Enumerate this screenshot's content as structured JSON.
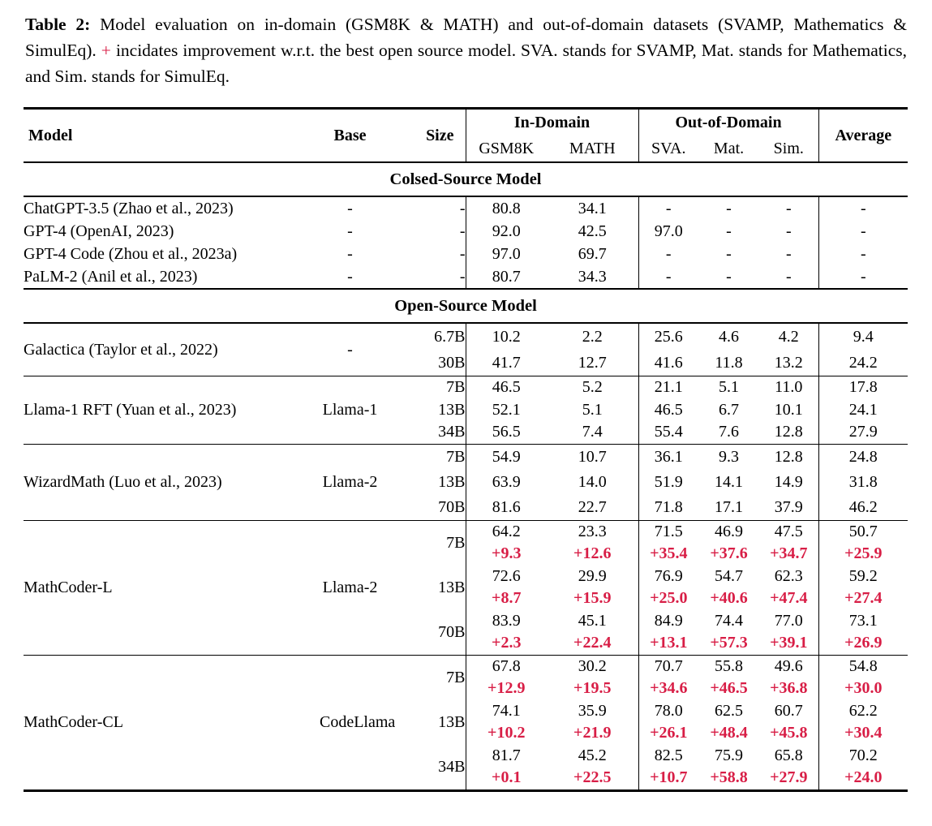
{
  "colors": {
    "accent_red": "#d81e46",
    "text": "#000000",
    "background": "#ffffff"
  },
  "caption": {
    "label": "Table 2:",
    "before_plus": "Model evaluation on in-domain (GSM8K & MATH) and out-of-domain datasets (SVAMP, Mathematics & SimulEq).",
    "plus": "+",
    "after_plus": "incidates improvement w.r.t. the best open source model. SVA. stands for SVAMP, Mat. stands for Mathematics, and Sim. stands for SimulEq."
  },
  "table": {
    "header": {
      "model": "Model",
      "base": "Base",
      "size": "Size",
      "in_domain": "In-Domain",
      "out_of_domain": "Out-of-Domain",
      "average": "Average",
      "sub": [
        "GSM8K",
        "MATH",
        "SVA.",
        "Mat.",
        "Sim."
      ]
    },
    "sections": [
      {
        "title": "Colsed-Source Model",
        "blocks": [
          {
            "models": [
              {
                "model": "ChatGPT-3.5 (Zhao et al., 2023)",
                "base": "-",
                "rows": [
                  {
                    "size": "-",
                    "values": [
                      "80.8",
                      "34.1",
                      "-",
                      "-",
                      "-",
                      "-"
                    ]
                  }
                ]
              },
              {
                "model": "GPT-4 (OpenAI, 2023)",
                "base": "-",
                "rows": [
                  {
                    "size": "-",
                    "values": [
                      "92.0",
                      "42.5",
                      "97.0",
                      "-",
                      "-",
                      "-"
                    ]
                  }
                ]
              },
              {
                "model": "GPT-4 Code (Zhou et al., 2023a)",
                "base": "-",
                "rows": [
                  {
                    "size": "-",
                    "values": [
                      "97.0",
                      "69.7",
                      "-",
                      "-",
                      "-",
                      "-"
                    ]
                  }
                ]
              },
              {
                "model": "PaLM-2 (Anil et al., 2023)",
                "base": "-",
                "rows": [
                  {
                    "size": "-",
                    "values": [
                      "80.7",
                      "34.3",
                      "-",
                      "-",
                      "-",
                      "-"
                    ]
                  }
                ]
              }
            ]
          }
        ]
      },
      {
        "title": "Open-Source Model",
        "blocks": [
          {
            "models": [
              {
                "model": "Galactica (Taylor et al., 2022)",
                "base": "-",
                "rows": [
                  {
                    "size": "6.7B",
                    "values": [
                      "10.2",
                      "2.2",
                      "25.6",
                      "4.6",
                      "4.2",
                      "9.4"
                    ]
                  },
                  {
                    "size": "30B",
                    "values": [
                      "41.7",
                      "12.7",
                      "41.6",
                      "11.8",
                      "13.2",
                      "24.2"
                    ]
                  }
                ]
              }
            ]
          },
          {
            "models": [
              {
                "model": "Llama-1 RFT (Yuan et al., 2023)",
                "base": "Llama-1",
                "rows": [
                  {
                    "size": "7B",
                    "values": [
                      "46.5",
                      "5.2",
                      "21.1",
                      "5.1",
                      "11.0",
                      "17.8"
                    ]
                  },
                  {
                    "size": "13B",
                    "values": [
                      "52.1",
                      "5.1",
                      "46.5",
                      "6.7",
                      "10.1",
                      "24.1"
                    ]
                  },
                  {
                    "size": "34B",
                    "values": [
                      "56.5",
                      "7.4",
                      "55.4",
                      "7.6",
                      "12.8",
                      "27.9"
                    ]
                  }
                ]
              }
            ]
          },
          {
            "models": [
              {
                "model": "WizardMath (Luo et al., 2023)",
                "base": "Llama-2",
                "rows": [
                  {
                    "size": "7B",
                    "values": [
                      "54.9",
                      "10.7",
                      "36.1",
                      "9.3",
                      "12.8",
                      "24.8"
                    ]
                  },
                  {
                    "size": "13B",
                    "values": [
                      "63.9",
                      "14.0",
                      "51.9",
                      "14.1",
                      "14.9",
                      "31.8"
                    ]
                  },
                  {
                    "size": "70B",
                    "values": [
                      "81.6",
                      "22.7",
                      "71.8",
                      "17.1",
                      "37.9",
                      "46.2"
                    ]
                  }
                ]
              }
            ]
          },
          {
            "models": [
              {
                "model": "MathCoder-L",
                "base": "Llama-2",
                "rows": [
                  {
                    "size": "7B",
                    "values": [
                      "64.2",
                      "23.3",
                      "71.5",
                      "46.9",
                      "47.5",
                      "50.7"
                    ],
                    "delta": [
                      "+9.3",
                      "+12.6",
                      "+35.4",
                      "+37.6",
                      "+34.7",
                      "+25.9"
                    ]
                  },
                  {
                    "size": "13B",
                    "values": [
                      "72.6",
                      "29.9",
                      "76.9",
                      "54.7",
                      "62.3",
                      "59.2"
                    ],
                    "delta": [
                      "+8.7",
                      "+15.9",
                      "+25.0",
                      "+40.6",
                      "+47.4",
                      "+27.4"
                    ]
                  },
                  {
                    "size": "70B",
                    "values": [
                      "83.9",
                      "45.1",
                      "84.9",
                      "74.4",
                      "77.0",
                      "73.1"
                    ],
                    "delta": [
                      "+2.3",
                      "+22.4",
                      "+13.1",
                      "+57.3",
                      "+39.1",
                      "+26.9"
                    ]
                  }
                ]
              }
            ]
          },
          {
            "models": [
              {
                "model": "MathCoder-CL",
                "base": "CodeLlama",
                "rows": [
                  {
                    "size": "7B",
                    "values": [
                      "67.8",
                      "30.2",
                      "70.7",
                      "55.8",
                      "49.6",
                      "54.8"
                    ],
                    "delta": [
                      "+12.9",
                      "+19.5",
                      "+34.6",
                      "+46.5",
                      "+36.8",
                      "+30.0"
                    ]
                  },
                  {
                    "size": "13B",
                    "values": [
                      "74.1",
                      "35.9",
                      "78.0",
                      "62.5",
                      "60.7",
                      "62.2"
                    ],
                    "delta": [
                      "+10.2",
                      "+21.9",
                      "+26.1",
                      "+48.4",
                      "+45.8",
                      "+30.4"
                    ]
                  },
                  {
                    "size": "34B",
                    "values": [
                      "81.7",
                      "45.2",
                      "82.5",
                      "75.9",
                      "65.8",
                      "70.2"
                    ],
                    "delta": [
                      "+0.1",
                      "+22.5",
                      "+10.7",
                      "+58.8",
                      "+27.9",
                      "+24.0"
                    ]
                  }
                ]
              }
            ]
          }
        ]
      }
    ]
  }
}
